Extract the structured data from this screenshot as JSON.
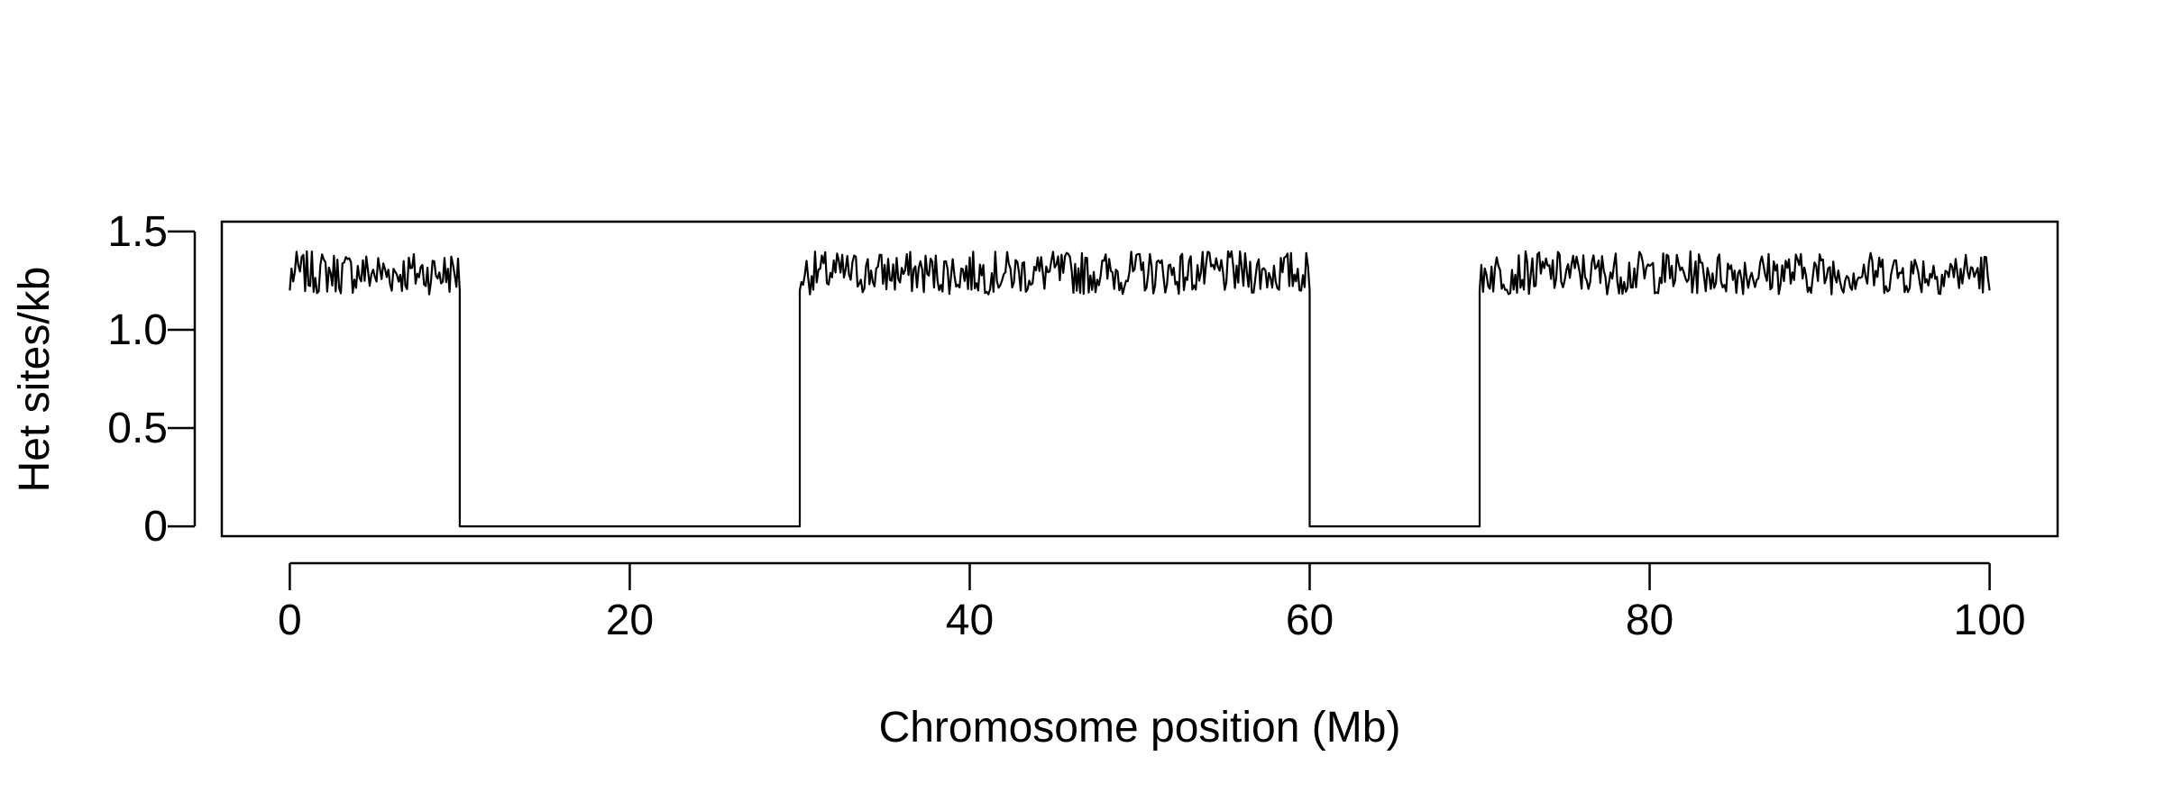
{
  "chart_data": {
    "type": "line",
    "title": "",
    "xlabel": "Chromosome position (Mb)",
    "ylabel": "Het sites/kb",
    "xlim": [
      -4,
      104
    ],
    "ylim": [
      -0.05,
      1.55
    ],
    "x_ticks": [
      {
        "value": 0,
        "label": "0"
      },
      {
        "value": 20,
        "label": "20"
      },
      {
        "value": 40,
        "label": "40"
      },
      {
        "value": 60,
        "label": "60"
      },
      {
        "value": 80,
        "label": "80"
      },
      {
        "value": 100,
        "label": "100"
      }
    ],
    "y_ticks": [
      {
        "value": 0,
        "label": "0"
      },
      {
        "value": 0.5,
        "label": "0.5"
      },
      {
        "value": 1.0,
        "label": "1.0"
      },
      {
        "value": 1.5,
        "label": "1.5"
      }
    ],
    "grid": false,
    "legend": "none",
    "line_color": "#000000",
    "series": [
      {
        "segments": [
          {
            "type": "heterozygous",
            "x_start": 0,
            "x_end": 10,
            "mean": 1.29,
            "amplitude": 0.11
          },
          {
            "type": "roh",
            "x_start": 10,
            "x_end": 30,
            "value": 0
          },
          {
            "type": "heterozygous",
            "x_start": 30,
            "x_end": 60,
            "mean": 1.29,
            "amplitude": 0.11
          },
          {
            "type": "roh",
            "x_start": 60,
            "x_end": 70,
            "value": 0
          },
          {
            "type": "heterozygous",
            "x_start": 70,
            "x_end": 100,
            "mean": 1.29,
            "amplitude": 0.11
          }
        ],
        "step_mb": 0.1
      }
    ]
  }
}
